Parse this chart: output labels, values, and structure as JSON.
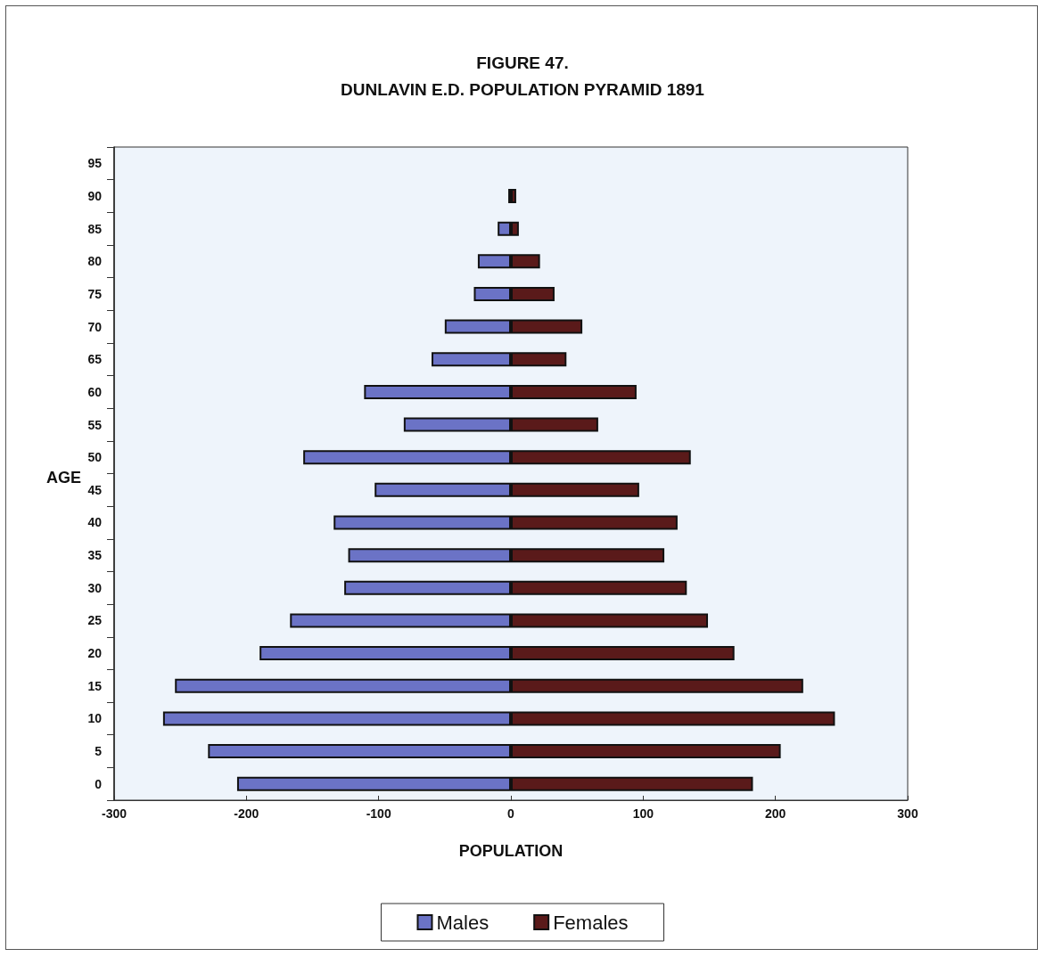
{
  "chart_data": {
    "type": "bar",
    "orientation": "horizontal",
    "title": "FIGURE 47.\nDUNLAVIN E.D. POPULATION PYRAMID 1891",
    "xlabel": "POPULATION",
    "ylabel": "AGE",
    "categories": [
      "95",
      "90",
      "85",
      "80",
      "75",
      "70",
      "65",
      "60",
      "55",
      "50",
      "45",
      "40",
      "35",
      "30",
      "25",
      "20",
      "15",
      "10",
      "5",
      "0"
    ],
    "series": [
      {
        "name": "Males",
        "color": "#6b73c6",
        "values": [
          null,
          -2,
          -10,
          -25,
          -28,
          -50,
          -60,
          -111,
          -81,
          -157,
          -103,
          -134,
          -123,
          -126,
          -167,
          -190,
          -254,
          -263,
          -229,
          -207
        ]
      },
      {
        "name": "Females",
        "color": "#5a1a1a",
        "values": [
          null,
          4,
          6,
          22,
          33,
          54,
          42,
          95,
          66,
          136,
          97,
          126,
          116,
          133,
          149,
          169,
          221,
          245,
          204,
          183
        ]
      }
    ],
    "xlim": [
      -300,
      300
    ],
    "xticks": [
      -300,
      -200,
      -100,
      0,
      100,
      200,
      300
    ],
    "stacked": true,
    "grid": false,
    "legend": "bottom"
  }
}
